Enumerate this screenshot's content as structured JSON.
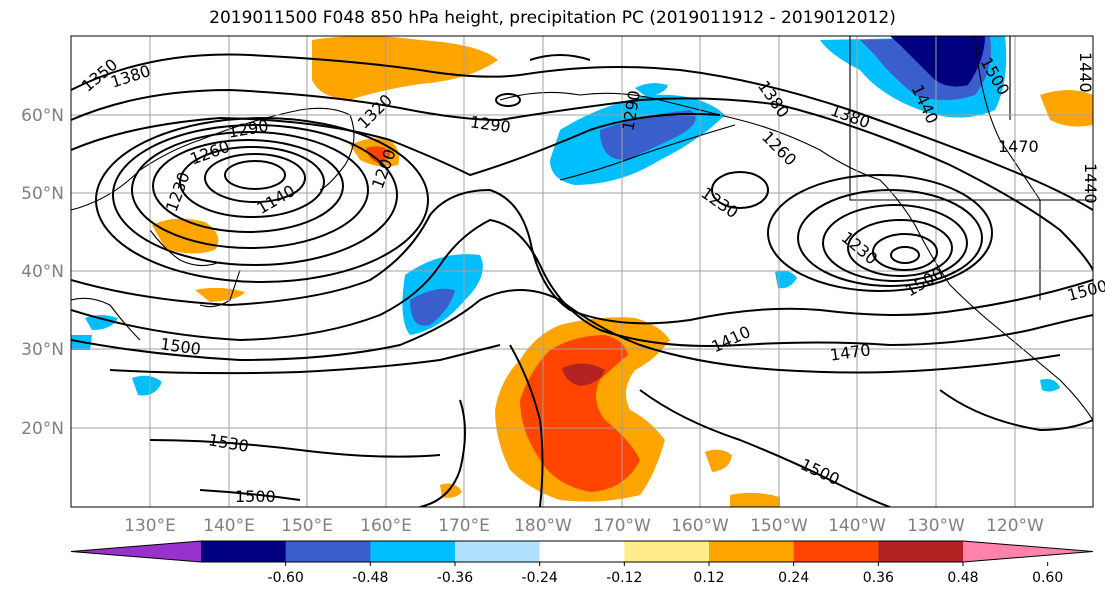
{
  "title": "2019011500 F048 850 hPa height, precipitation PC (2019011912 - 2019012012)",
  "lat_labels": [
    "60°N",
    "50°N",
    "40°N",
    "30°N",
    "20°N"
  ],
  "lon_labels": [
    "130°E",
    "140°E",
    "150°E",
    "160°E",
    "170°E",
    "180°W",
    "170°W",
    "160°W",
    "150°W",
    "140°W",
    "130°W",
    "120°W"
  ],
  "colorbar": {
    "colors": [
      "#9932cc",
      "#000080",
      "#3a5fcd",
      "#00bfff",
      "#b0e2ff",
      "#ffffff",
      "#ffec8b",
      "#ffa500",
      "#ff4500",
      "#b22222",
      "#ff82ab"
    ],
    "ticks": [
      "-0.60",
      "-0.48",
      "-0.36",
      "-0.24",
      "-0.12",
      "0.12",
      "0.24",
      "0.36",
      "0.48",
      "0.60"
    ]
  },
  "contour_labels": [
    "1350",
    "1380",
    "1320",
    "1290",
    "1260",
    "1230",
    "1140",
    "1290",
    "1290",
    "1380",
    "1260",
    "1230",
    "1380",
    "1500",
    "1470",
    "1440",
    "1440",
    "1230",
    "1500",
    "1410",
    "1470",
    "1500",
    "1530",
    "1500",
    "1500",
    "1500",
    "1440",
    "1200"
  ]
}
